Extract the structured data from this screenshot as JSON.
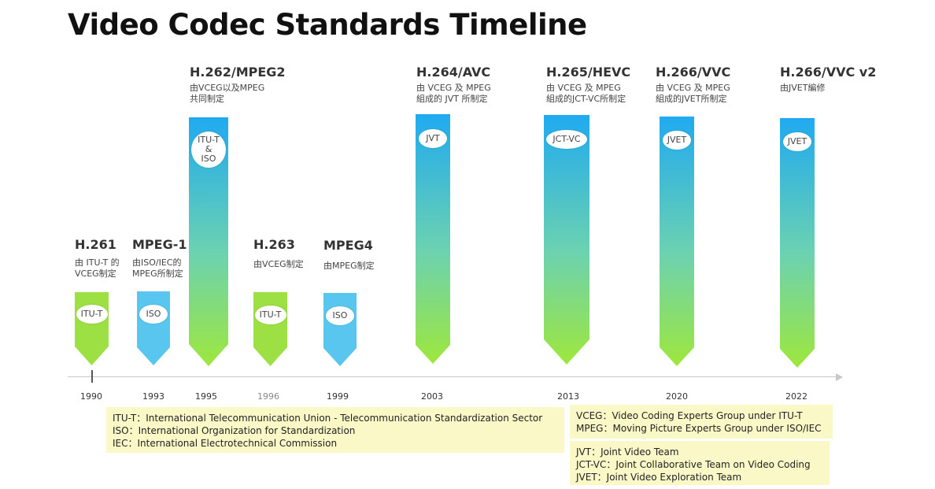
{
  "title": "Video Codec Standards Timeline",
  "colors": {
    "green_bar": "#9ce044",
    "blue_bar": "#58c6ee",
    "legend_bg": "#fbf8c8"
  },
  "standards": [
    {
      "name": "H.261",
      "desc": "由 ITU-T 的\nVCEG制定",
      "badge": "ITU-T",
      "year": "1990"
    },
    {
      "name": "MPEG-1",
      "desc": "由ISO/IEC的\nMPEG所制定",
      "badge": "ISO",
      "year": "1993"
    },
    {
      "name": "H.262/MPEG2",
      "desc": "由VCEG以及MPEG\n共同制定",
      "badge": "ITU-T\n&\nISO",
      "year": "1995"
    },
    {
      "name": "H.263",
      "desc": "由VCEG制定",
      "badge": "ITU-T",
      "year": "1996"
    },
    {
      "name": "MPEG4",
      "desc": "由MPEG制定",
      "badge": "ISO",
      "year": "1999"
    },
    {
      "name": "H.264/AVC",
      "desc": "由 VCEG 及 MPEG\n組成的 JVT 所制定",
      "badge": "JVT",
      "year": "2003"
    },
    {
      "name": "H.265/HEVC",
      "desc": "由 VCEG 及 MPEG\n組成的JCT-VC所制定",
      "badge": "JCT-VC",
      "year": "2013"
    },
    {
      "name": "H.266/VVC",
      "desc": "由 VCEG 及 MPEG\n組成的JVET所制定",
      "badge": "JVET",
      "year": "2020"
    },
    {
      "name": "H.266/VVC v2",
      "desc": "由JVET編修",
      "badge": "JVET",
      "year": "2022"
    }
  ],
  "legend_left": [
    "ITU-T：International Telecommunication Union - Telecommunication Standardization Sector",
    "ISO：International Organization for Standardization",
    "IEC：International Electrotechnical Commission"
  ],
  "legend_right_top": [
    "VCEG：Video Coding Experts Group under ITU-T",
    "MPEG：Moving Picture Experts Group under ISO/IEC"
  ],
  "legend_right_bottom": [
    "JVT：Joint Video Team",
    "JCT-VC：Joint Collaborative Team on Video Coding",
    "JVET：Joint Video Exploration Team"
  ]
}
